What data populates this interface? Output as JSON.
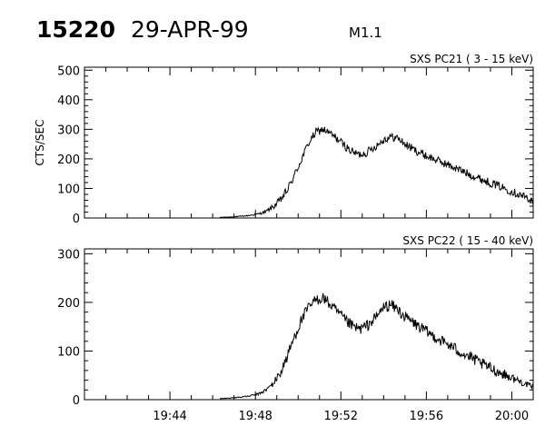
{
  "header": {
    "event_id": "15220",
    "date": "29-APR-99",
    "flare_class": "M1.1"
  },
  "chart_data": [
    {
      "type": "line",
      "title": "SXS PC21  (  3 - 15 keV)",
      "ylabel": "CTS/SEC",
      "ylim": [
        0,
        510
      ],
      "yticks": [
        0,
        100,
        200,
        300,
        400,
        500
      ],
      "xlim": [
        "19:40",
        "20:01"
      ],
      "xticks": [
        "19:44",
        "19:48",
        "19:52",
        "19:56",
        "20:00"
      ],
      "show_x_tick_labels": false,
      "noise": 14,
      "series": [
        {
          "x": [
            "19:46:20",
            "19:47:00",
            "19:47:40",
            "19:48:10",
            "19:48:30",
            "19:48:50",
            "19:49:10",
            "19:49:30",
            "19:49:50",
            "19:50:10",
            "19:50:30",
            "19:50:50",
            "19:51:10",
            "19:51:30",
            "19:51:50",
            "19:52:10",
            "19:52:30",
            "19:52:50",
            "19:53:10",
            "19:53:40",
            "19:54:00",
            "19:54:20",
            "19:54:40",
            "19:55:00",
            "19:55:30",
            "19:56:00",
            "19:56:40",
            "19:57:20",
            "19:58:00",
            "19:58:40",
            "19:59:20",
            "20:00:00",
            "20:00:40",
            "20:01:00"
          ],
          "y": [
            2,
            4,
            8,
            14,
            22,
            38,
            60,
            95,
            145,
            200,
            255,
            290,
            300,
            285,
            268,
            245,
            225,
            215,
            220,
            245,
            265,
            275,
            270,
            250,
            228,
            210,
            190,
            170,
            148,
            128,
            110,
            90,
            70,
            55
          ]
        }
      ]
    },
    {
      "type": "line",
      "title": "SXS PC22  ( 15 - 40 keV)",
      "ylabel": "",
      "ylim": [
        0,
        310
      ],
      "yticks": [
        0,
        100,
        200,
        300
      ],
      "xlim": [
        "19:40",
        "20:01"
      ],
      "xticks": [
        "19:44",
        "19:48",
        "19:52",
        "19:56",
        "20:00"
      ],
      "show_x_tick_labels": true,
      "noise": 12,
      "series": [
        {
          "x": [
            "19:46:20",
            "19:47:00",
            "19:47:40",
            "19:48:10",
            "19:48:30",
            "19:48:50",
            "19:49:10",
            "19:49:30",
            "19:49:50",
            "19:50:10",
            "19:50:30",
            "19:50:50",
            "19:51:10",
            "19:51:30",
            "19:51:50",
            "19:52:10",
            "19:52:30",
            "19:52:50",
            "19:53:10",
            "19:53:40",
            "19:54:00",
            "19:54:20",
            "19:54:40",
            "19:55:00",
            "19:55:30",
            "19:56:00",
            "19:56:40",
            "19:57:20",
            "19:58:00",
            "19:58:40",
            "19:59:20",
            "20:00:00",
            "20:00:40",
            "20:01:00"
          ],
          "y": [
            2,
            4,
            7,
            12,
            20,
            33,
            55,
            90,
            130,
            165,
            190,
            205,
            210,
            195,
            180,
            165,
            152,
            145,
            150,
            170,
            190,
            195,
            185,
            170,
            155,
            140,
            122,
            105,
            88,
            72,
            58,
            45,
            32,
            25
          ]
        }
      ]
    }
  ]
}
